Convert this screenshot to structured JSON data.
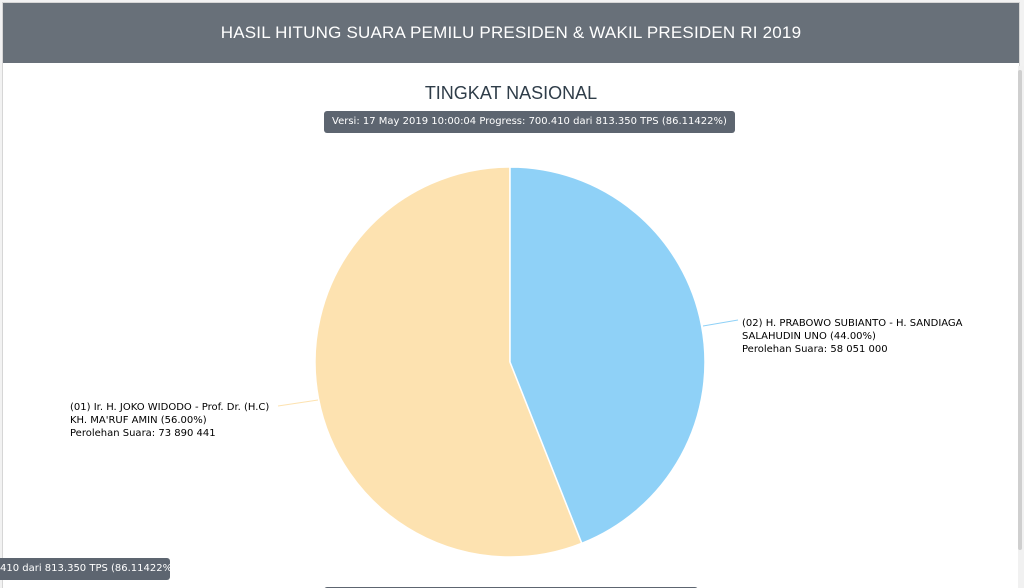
{
  "header": {
    "title": "HASIL HITUNG SUARA PEMILU PRESIDEN & WAKIL PRESIDEN RI 2019"
  },
  "version_badge": "Versi: 17 May 2019 10:00:04 Progress: 700.410 dari 813.350 TPS (86.11422%)",
  "floating_badge": "410 dari 813.350 TPS (86.11422%)",
  "colors": {
    "header_bg": "#687079",
    "slice_01": "#fde2b0",
    "slice_02": "#8fd1f7"
  },
  "chart_data": {
    "type": "pie",
    "title": "TINGKAT NASIONAL",
    "slices": [
      {
        "name": "(01) Ir. H. JOKO WIDODO - Prof. Dr. (H.C) KH. MA'RUF AMIN",
        "label_lines": [
          "(01) Ir. H. JOKO WIDODO - Prof. Dr. (H.C)",
          "KH. MA'RUF AMIN (56.00%)",
          "Perolehan Suara: 73 890 441"
        ],
        "percent": 56.0,
        "value": 73890441,
        "color": "#fde2b0"
      },
      {
        "name": "(02) H. PRABOWO SUBIANTO - H. SANDIAGA SALAHUDIN UNO",
        "label_lines": [
          "(02) H. PRABOWO SUBIANTO - H. SANDIAGA",
          "SALAHUDIN UNO (44.00%)",
          "Perolehan Suara: 58 051 000"
        ],
        "percent": 44.0,
        "value": 58051000,
        "color": "#8fd1f7"
      }
    ],
    "start_angle": "top",
    "direction": "clockwise",
    "legend": "none"
  }
}
